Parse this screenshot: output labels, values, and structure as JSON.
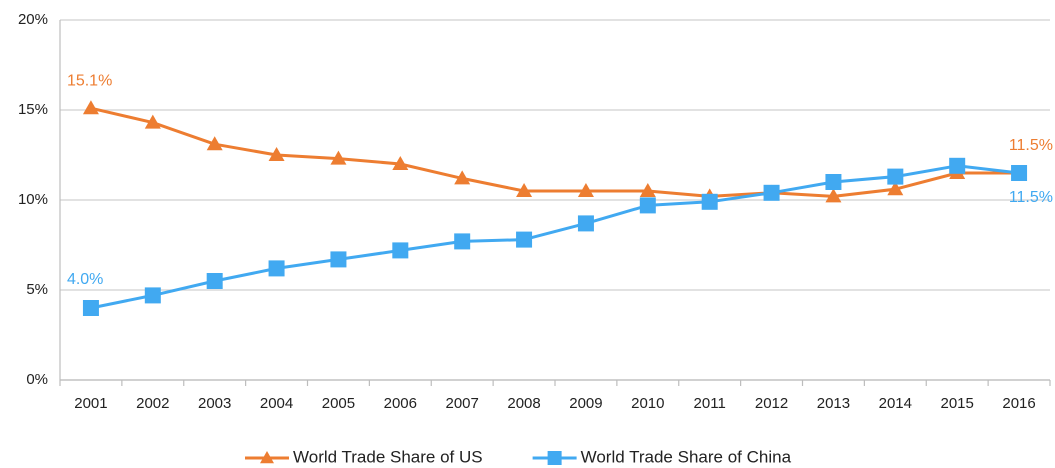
{
  "chart_data": {
    "type": "line",
    "categories": [
      "2001",
      "2002",
      "2003",
      "2004",
      "2005",
      "2006",
      "2007",
      "2008",
      "2009",
      "2010",
      "2011",
      "2012",
      "2013",
      "2014",
      "2015",
      "2016"
    ],
    "series": [
      {
        "name": "World Trade Share of US",
        "color": "#ED7D31",
        "marker": "triangle",
        "values": [
          15.1,
          14.3,
          13.1,
          12.5,
          12.3,
          12.0,
          11.2,
          10.5,
          10.5,
          10.5,
          10.2,
          10.4,
          10.2,
          10.6,
          11.5,
          11.5
        ],
        "value_labels": [
          "15.1%",
          null,
          null,
          null,
          null,
          null,
          null,
          null,
          null,
          null,
          null,
          null,
          null,
          null,
          null,
          "11.5%"
        ]
      },
      {
        "name": "World Trade Share of China",
        "color": "#41A9F1",
        "marker": "square",
        "values": [
          4.0,
          4.7,
          5.5,
          6.2,
          6.7,
          7.2,
          7.7,
          7.8,
          8.7,
          9.7,
          9.9,
          10.4,
          11.0,
          11.3,
          11.9,
          11.5
        ],
        "value_labels": [
          "4.0%",
          null,
          null,
          null,
          null,
          null,
          null,
          null,
          null,
          null,
          null,
          null,
          null,
          null,
          null,
          "11.5%"
        ]
      }
    ],
    "ylim": [
      0,
      20
    ],
    "yticks": [
      {
        "value": 0,
        "label": "0%"
      },
      {
        "value": 5,
        "label": "5%"
      },
      {
        "value": 10,
        "label": "10%"
      },
      {
        "value": 15,
        "label": "15%"
      },
      {
        "value": 20,
        "label": "20%"
      }
    ],
    "grid": true,
    "legend": "bottom"
  }
}
